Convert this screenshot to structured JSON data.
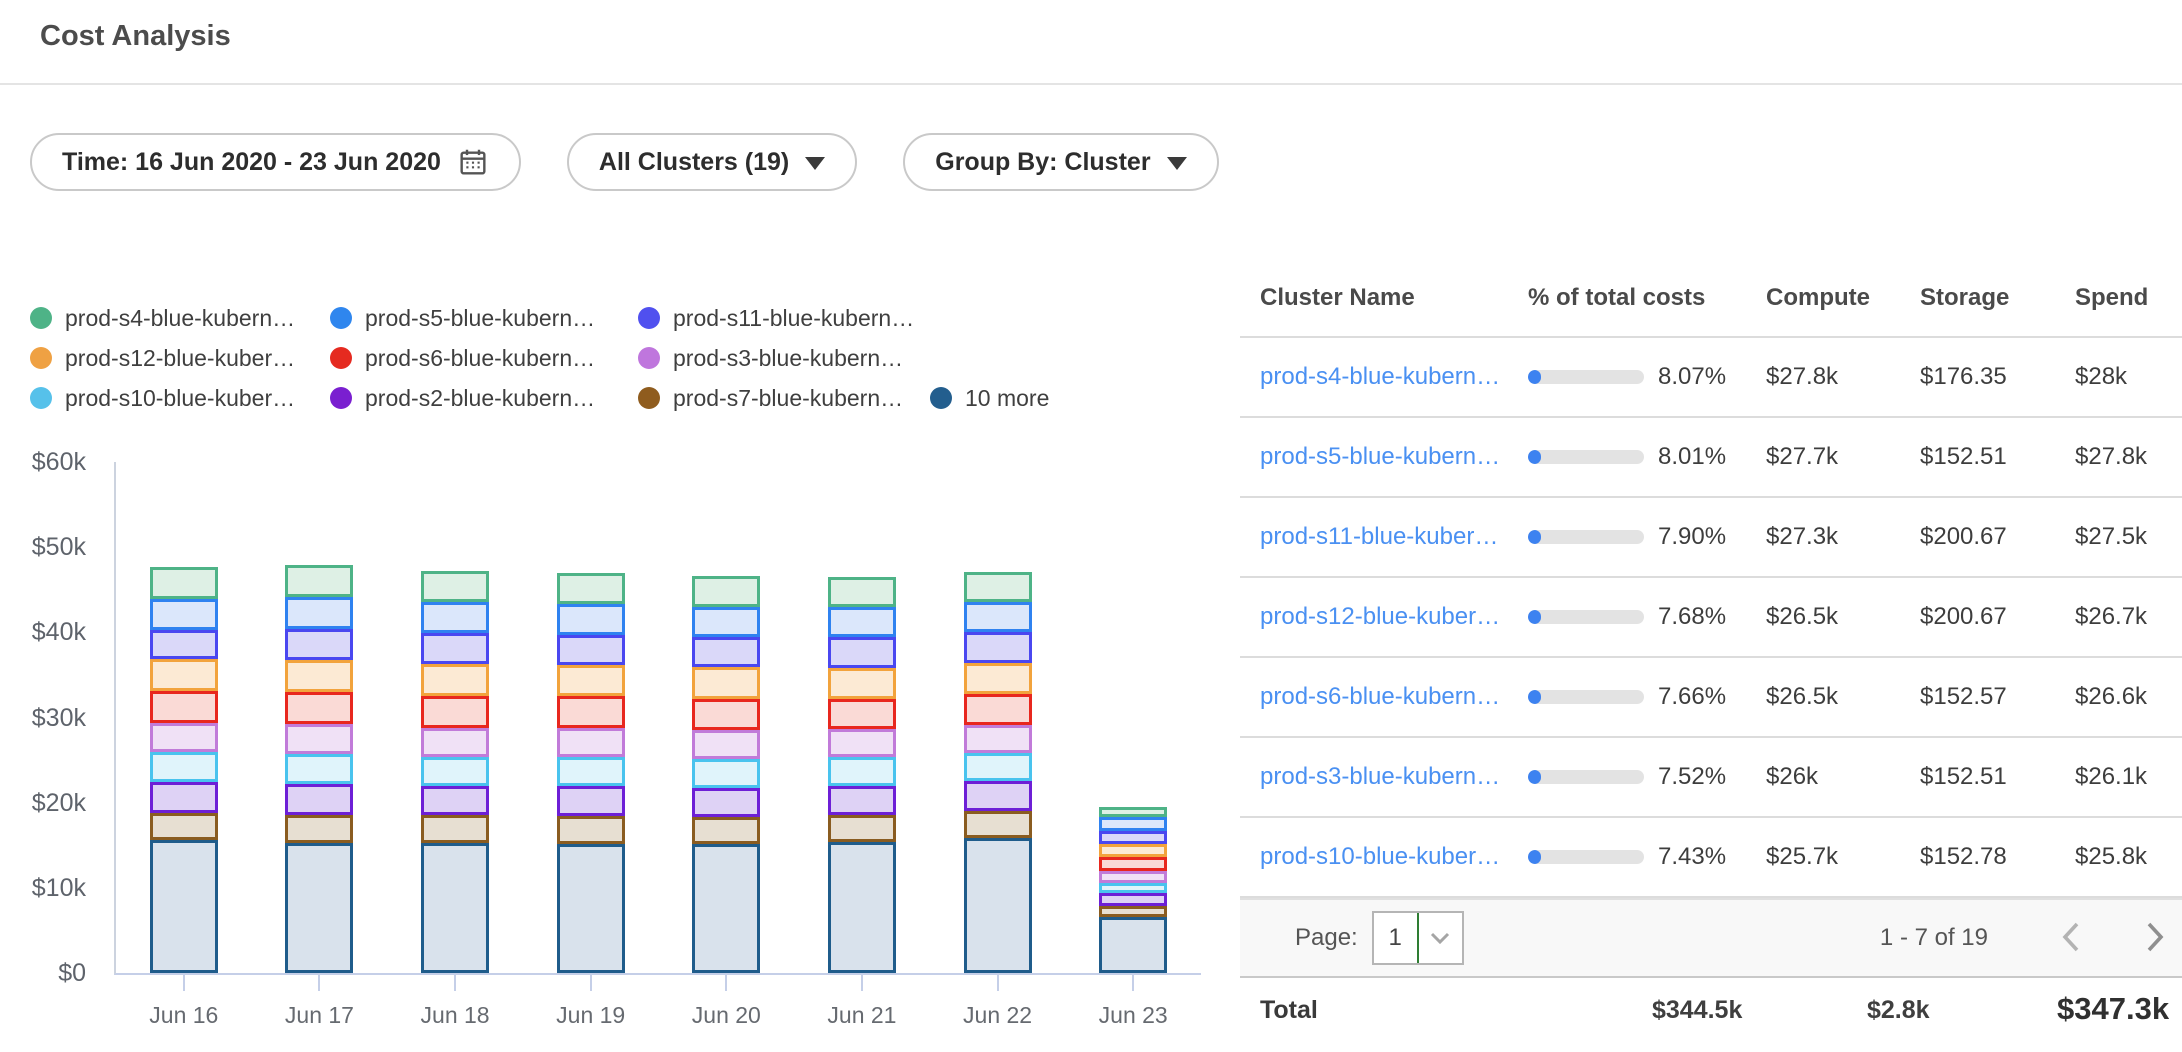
{
  "header": {
    "title": "Cost Analysis"
  },
  "filters": {
    "time": {
      "label": "Time: 16 Jun 2020 - 23 Jun 2020",
      "icon": "calendar-icon"
    },
    "clusters": {
      "label": "All Clusters (19)",
      "icon": "caret-down-icon"
    },
    "group_by": {
      "label": "Group By: Cluster",
      "icon": "caret-down-icon"
    }
  },
  "legend": {
    "rows": [
      [
        {
          "label": "prod-s4-blue-kubern…",
          "color": "#4eb387"
        },
        {
          "label": "prod-s5-blue-kubern…",
          "color": "#2f86ee"
        },
        {
          "label": "prod-s11-blue-kubern…",
          "color": "#5050ef"
        }
      ],
      [
        {
          "label": "prod-s12-blue-kuber…",
          "color": "#efa143"
        },
        {
          "label": "prod-s6-blue-kubern…",
          "color": "#e52a20"
        },
        {
          "label": "prod-s3-blue-kubern…",
          "color": "#bf76dd"
        }
      ],
      [
        {
          "label": "prod-s10-blue-kuber…",
          "color": "#56c1ea"
        },
        {
          "label": "prod-s2-blue-kubern…",
          "color": "#7a1fd0"
        },
        {
          "label": "prod-s7-blue-kubern…",
          "color": "#8f5c1e"
        },
        {
          "label": "10 more",
          "color": "#235e8e"
        }
      ]
    ]
  },
  "chart_data": {
    "type": "bar",
    "subtype": "stacked",
    "x": [
      "Jun 16",
      "Jun 17",
      "Jun 18",
      "Jun 19",
      "Jun 20",
      "Jun 21",
      "Jun 22",
      "Jun 23"
    ],
    "y_ticks": [
      "$60k",
      "$50k",
      "$40k",
      "$30k",
      "$20k",
      "$10k",
      "$0"
    ],
    "ylim_k": [
      0,
      60
    ],
    "unit": "$ thousands (USD)",
    "grid": false,
    "legend_position": "top-left",
    "stack_order": "bottom-to-top",
    "series": [
      {
        "name": "10 more",
        "stroke": "#1f5c8b",
        "fill": "#d9e2ec",
        "values_k": [
          15.6,
          15.3,
          15.3,
          15.2,
          15.2,
          15.4,
          15.8,
          6.6
        ]
      },
      {
        "name": "prod-s7-blue-kubern…",
        "stroke": "#8a5c20",
        "fill": "#e7dfd2",
        "values_k": [
          3.2,
          3.3,
          3.2,
          3.2,
          3.1,
          3.1,
          3.2,
          1.3
        ]
      },
      {
        "name": "prod-s2-blue-kubern…",
        "stroke": "#6d1fd6",
        "fill": "#ded2f5",
        "values_k": [
          3.6,
          3.6,
          3.5,
          3.5,
          3.4,
          3.4,
          3.5,
          1.5
        ]
      },
      {
        "name": "prod-s10-blue-kuber…",
        "stroke": "#49c3ee",
        "fill": "#e0f4fb",
        "values_k": [
          3.5,
          3.5,
          3.4,
          3.5,
          3.4,
          3.4,
          3.3,
          1.2
        ]
      },
      {
        "name": "prod-s3-blue-kubern…",
        "stroke": "#c17bd9",
        "fill": "#f0e1f6",
        "values_k": [
          3.4,
          3.5,
          3.4,
          3.4,
          3.4,
          3.3,
          3.3,
          1.4
        ]
      },
      {
        "name": "prod-s6-blue-kubern…",
        "stroke": "#e8271e",
        "fill": "#fadad6",
        "values_k": [
          3.8,
          3.8,
          3.7,
          3.7,
          3.7,
          3.6,
          3.7,
          1.6
        ]
      },
      {
        "name": "prod-s12-blue-kuber…",
        "stroke": "#f2a33c",
        "fill": "#fcead4",
        "values_k": [
          3.7,
          3.8,
          3.8,
          3.7,
          3.7,
          3.6,
          3.6,
          1.5
        ]
      },
      {
        "name": "prod-s11-blue-kubern…",
        "stroke": "#4a47f0",
        "fill": "#dad8f9",
        "values_k": [
          3.5,
          3.6,
          3.6,
          3.5,
          3.5,
          3.6,
          3.6,
          1.6
        ]
      },
      {
        "name": "prod-s5-blue-kubern…",
        "stroke": "#2f82f0",
        "fill": "#dbe7fb",
        "values_k": [
          3.6,
          3.7,
          3.6,
          3.6,
          3.6,
          3.5,
          3.5,
          1.6
        ]
      },
      {
        "name": "prod-s4-blue-kubern…",
        "stroke": "#4eb387",
        "fill": "#def0e5",
        "values_k": [
          3.7,
          3.8,
          3.7,
          3.7,
          3.6,
          3.6,
          3.6,
          1.2
        ]
      }
    ]
  },
  "table": {
    "columns": [
      "Cluster Name",
      "% of total costs",
      "Compute",
      "Storage",
      "Spend"
    ],
    "rows": [
      {
        "name": "prod-s4-blue-kubern…",
        "percent": "8.07%",
        "percent_value": 8.07,
        "compute": "$27.8k",
        "storage": "$176.35",
        "spend": "$28k"
      },
      {
        "name": "prod-s5-blue-kubern…",
        "percent": "8.01%",
        "percent_value": 8.01,
        "compute": "$27.7k",
        "storage": "$152.51",
        "spend": "$27.8k"
      },
      {
        "name": "prod-s11-blue-kuber…",
        "percent": "7.90%",
        "percent_value": 7.9,
        "compute": "$27.3k",
        "storage": "$200.67",
        "spend": "$27.5k"
      },
      {
        "name": "prod-s12-blue-kuber…",
        "percent": "7.68%",
        "percent_value": 7.68,
        "compute": "$26.5k",
        "storage": "$200.67",
        "spend": "$26.7k"
      },
      {
        "name": "prod-s6-blue-kubern…",
        "percent": "7.66%",
        "percent_value": 7.66,
        "compute": "$26.5k",
        "storage": "$152.57",
        "spend": "$26.6k"
      },
      {
        "name": "prod-s3-blue-kubern…",
        "percent": "7.52%",
        "percent_value": 7.52,
        "compute": "$26k",
        "storage": "$152.51",
        "spend": "$26.1k"
      },
      {
        "name": "prod-s10-blue-kuber…",
        "percent": "7.43%",
        "percent_value": 7.43,
        "compute": "$25.7k",
        "storage": "$152.78",
        "spend": "$25.8k"
      }
    ],
    "pagination": {
      "page_label": "Page:",
      "page": "1",
      "range": "1 - 7 of 19"
    },
    "total": {
      "label": "Total",
      "compute": "$344.5k",
      "storage": "$2.8k",
      "spend": "$347.3k"
    }
  },
  "colors": {
    "link": "#4a90f2",
    "progress_fill": "#3d82f0",
    "progress_track": "#e3e3e3",
    "axis": "#c5cfe8",
    "page_select_accent": "#2e7d32"
  }
}
